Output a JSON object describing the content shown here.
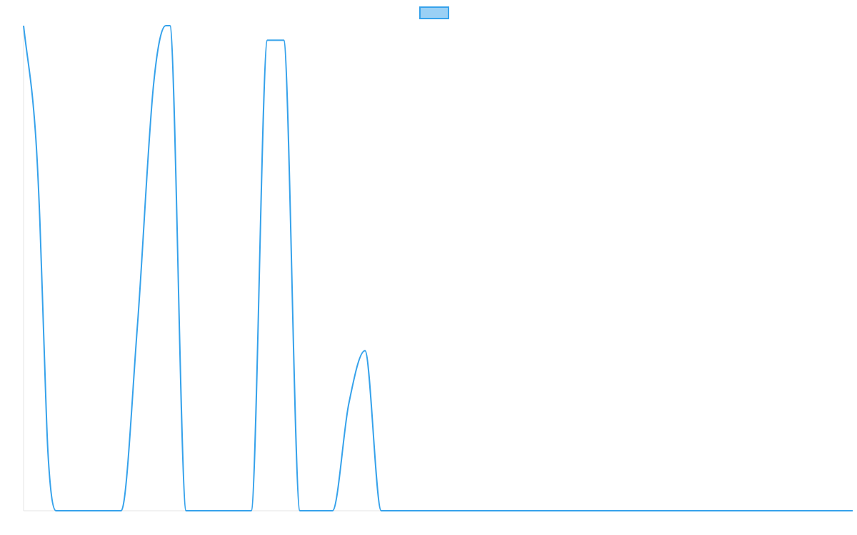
{
  "chart_data": {
    "type": "line",
    "title": "",
    "xlabel": "",
    "ylabel": "",
    "grid": false,
    "legend": "top-center",
    "xlim": [
      0,
      51
    ],
    "ylim": [
      0,
      1
    ],
    "series": [
      {
        "name": "",
        "color": "#36a2eb",
        "fill": "#9ad0f5",
        "x": [
          0,
          0.75,
          1,
          1.25,
          1.5,
          2,
          6,
          7,
          8,
          8.75,
          9,
          10,
          11,
          12,
          14,
          15,
          16,
          17,
          18,
          19,
          20,
          21,
          22,
          23,
          24,
          51
        ],
        "y": [
          1,
          0.77,
          0.6,
          0.35,
          0.12,
          0,
          0,
          0.38,
          0.88,
          1,
          1,
          0,
          0,
          0,
          0,
          0.97,
          0.97,
          0,
          0,
          0,
          0.22,
          0.33,
          0,
          0,
          0,
          0
        ]
      }
    ]
  }
}
